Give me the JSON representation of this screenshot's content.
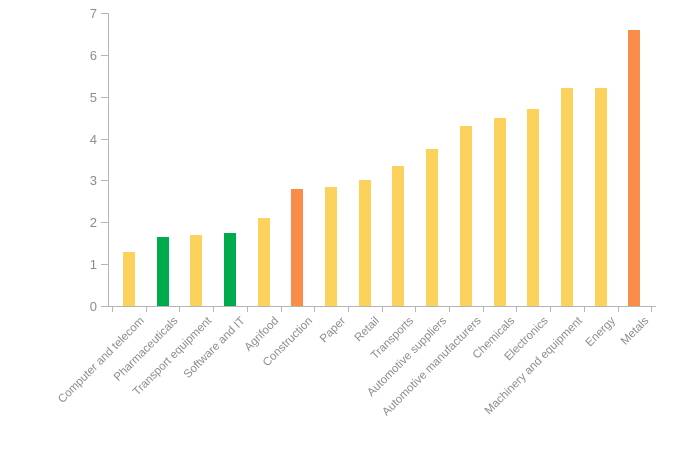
{
  "chart_data": {
    "type": "bar",
    "title": "",
    "xlabel": "",
    "ylabel": "",
    "categories": [
      "Computer and telecom",
      "Pharmaceuticals",
      "Transport equipment",
      "Software and IT",
      "Agrifood",
      "Construction",
      "Paper",
      "Retail",
      "Transports",
      "Automotive suppliers",
      "Automotive manufacturers",
      "Chemicals",
      "Electronics",
      "Machinery and equipment",
      "Energy",
      "Metals"
    ],
    "values": [
      1.3,
      1.65,
      1.7,
      1.75,
      2.1,
      2.8,
      2.85,
      3.0,
      3.35,
      3.75,
      4.3,
      4.5,
      4.7,
      5.2,
      5.2,
      6.6
    ],
    "bar_colors": [
      "#FCD15C",
      "#00AB4E",
      "#FCD15C",
      "#00AB4E",
      "#FCD15C",
      "#FA8C4A",
      "#FCD15C",
      "#FCD15C",
      "#FCD15C",
      "#FCD15C",
      "#FCD15C",
      "#FCD15C",
      "#FCD15C",
      "#FCD15C",
      "#FCD15C",
      "#FA8C4A"
    ],
    "colors": {
      "default_yellow": "#FCD15C",
      "highlight_green": "#00AB4E",
      "highlight_orange": "#FA8C4A",
      "axis": "#b5b5b5",
      "tick_text": "#8c8c8c"
    },
    "ylim": [
      0,
      7
    ],
    "yticks": [
      0,
      1,
      2,
      3,
      4,
      5,
      6,
      7
    ],
    "grid": false,
    "legend": false,
    "xtick_label_rotation_deg": 45
  }
}
